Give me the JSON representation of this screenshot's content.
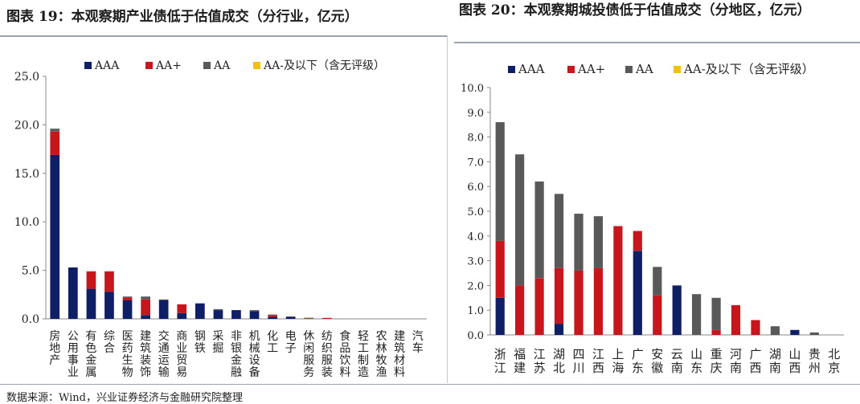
{
  "titles": {
    "left": "图表 19：本观察期产业债低于估值成交（分行业，亿元）",
    "right": "图表 20：本观察期城投债低于估值成交（分地区，亿元）"
  },
  "source": "数据来源：Wind，兴业证券经济与金融研究院整理",
  "colors": {
    "AAA": "#0e1f66",
    "AA+": "#c8161d",
    "AA": "#595959",
    "AA-及以下（含无评级）": "#f2c100"
  },
  "chart_data": [
    {
      "type": "bar",
      "stacked": true,
      "title": "图表 19：本观察期产业债低于估值成交（分行业，亿元）",
      "categories": [
        "房地产",
        "公用事业",
        "有色金属",
        "综合",
        "医药生物",
        "建筑装饰",
        "交通运输",
        "商业贸易",
        "钢铁",
        "采掘",
        "非银金融",
        "机械设备",
        "化工",
        "电子",
        "休闲服务",
        "纺织服装",
        "食品饮料",
        "轻工制造",
        "农林牧渔",
        "建筑材料",
        "汽车"
      ],
      "series": [
        {
          "name": "AAA",
          "values": [
            16.9,
            5.3,
            3.1,
            2.8,
            1.9,
            0.4,
            1.9,
            0.6,
            1.6,
            0.9,
            0.9,
            0.8,
            0.2,
            0.2,
            0,
            0,
            0,
            0,
            0,
            0,
            0
          ]
        },
        {
          "name": "AA+",
          "values": [
            2.4,
            0,
            1.8,
            2.1,
            0.3,
            1.6,
            0,
            0.9,
            0,
            0,
            0,
            0,
            0.2,
            0,
            0,
            0.1,
            0,
            0,
            0,
            0,
            0
          ]
        },
        {
          "name": "AA",
          "values": [
            0.3,
            0,
            0,
            0,
            0.1,
            0.3,
            0.1,
            0,
            0,
            0.1,
            0,
            0.1,
            0.05,
            0.05,
            0.1,
            0,
            0,
            0,
            0,
            0,
            0
          ]
        },
        {
          "name": "AA-及以下（含无评级）",
          "values": [
            0,
            0,
            0,
            0,
            0,
            0,
            0,
            0,
            0,
            0,
            0,
            0,
            0,
            0,
            0.05,
            0,
            0,
            0,
            0,
            0,
            0
          ]
        }
      ],
      "ylim": [
        0,
        25
      ],
      "yticks": [
        "0.0",
        "5.0",
        "10.0",
        "15.0",
        "20.0",
        "25.0"
      ],
      "legend": "top"
    },
    {
      "type": "bar",
      "stacked": true,
      "title": "图表 20：本观察期城投债低于估值成交（分地区，亿元）",
      "categories": [
        "浙江",
        "福建",
        "江苏",
        "湖北",
        "四川",
        "江西",
        "上海",
        "广东",
        "安徽",
        "云南",
        "山东",
        "重庆",
        "河南",
        "广西",
        "湖南",
        "山西",
        "贵州",
        "北京"
      ],
      "series": [
        {
          "name": "AAA",
          "values": [
            1.5,
            0,
            0,
            0.45,
            0,
            0,
            0,
            3.4,
            0,
            2.0,
            0,
            0,
            0,
            0,
            0,
            0.2,
            0,
            0
          ]
        },
        {
          "name": "AA+",
          "values": [
            2.3,
            2.0,
            2.3,
            2.25,
            2.6,
            2.7,
            4.4,
            0.8,
            1.6,
            0,
            0,
            0.2,
            1.2,
            0.6,
            0,
            0,
            0,
            0
          ]
        },
        {
          "name": "AA",
          "values": [
            4.8,
            5.3,
            3.9,
            3.0,
            2.3,
            2.1,
            0,
            0,
            1.15,
            0,
            1.65,
            1.3,
            0,
            0,
            0.35,
            0,
            0.1,
            0
          ]
        },
        {
          "name": "AA-及以下（含无评级）",
          "values": [
            0,
            0,
            0,
            0,
            0,
            0,
            0,
            0,
            0,
            0,
            0,
            0,
            0,
            0,
            0,
            0,
            0,
            0
          ]
        }
      ],
      "ylim": [
        0,
        10
      ],
      "yticks": [
        "0.0",
        "1.0",
        "2.0",
        "3.0",
        "4.0",
        "5.0",
        "6.0",
        "7.0",
        "8.0",
        "9.0",
        "10.0"
      ],
      "legend": "top"
    }
  ]
}
